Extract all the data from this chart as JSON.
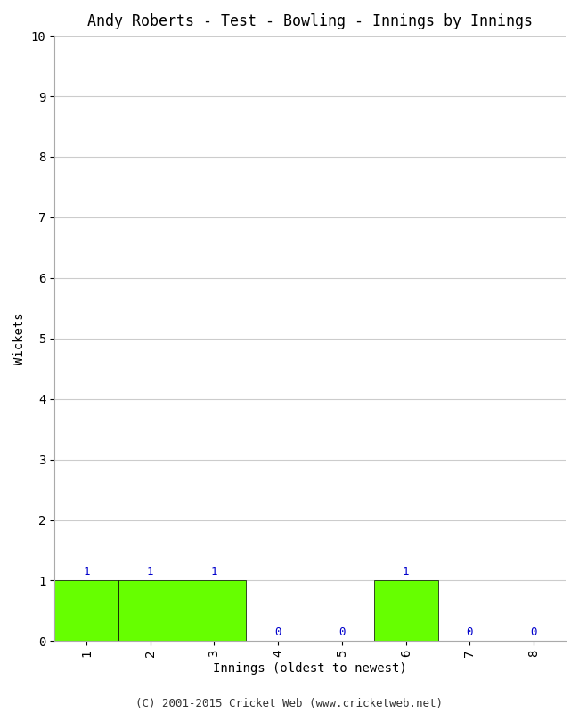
{
  "title": "Andy Roberts - Test - Bowling - Innings by Innings",
  "xlabel": "Innings (oldest to newest)",
  "ylabel": "Wickets",
  "categories": [
    "1",
    "2",
    "3",
    "4",
    "5",
    "6",
    "7",
    "8"
  ],
  "values": [
    1,
    1,
    1,
    0,
    0,
    1,
    0,
    0
  ],
  "bar_color": "#66ff00",
  "bar_edge_color": "#000000",
  "ylim": [
    0,
    10
  ],
  "yticks": [
    0,
    1,
    2,
    3,
    4,
    5,
    6,
    7,
    8,
    9,
    10
  ],
  "label_color": "#0000cc",
  "background_color": "#ffffff",
  "grid_color": "#cccccc",
  "footer": "(C) 2001-2015 Cricket Web (www.cricketweb.net)",
  "title_fontsize": 12,
  "axis_label_fontsize": 10,
  "tick_fontsize": 10,
  "bar_label_fontsize": 9,
  "footer_fontsize": 9
}
